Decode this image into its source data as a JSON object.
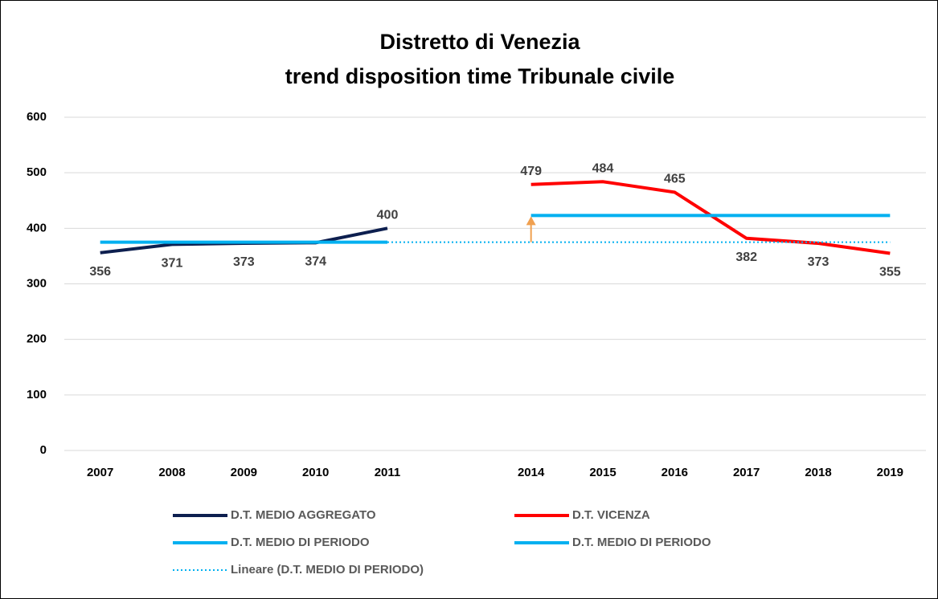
{
  "chart_data": {
    "type": "line",
    "title": [
      "Distretto di Venezia",
      "trend disposition time Tribunale civile"
    ],
    "categories": [
      "2007",
      "2008",
      "2009",
      "2010",
      "2011",
      null,
      "2014",
      "2015",
      "2016",
      "2017",
      "2018",
      "2019"
    ],
    "series": [
      {
        "name": "D.T. MEDIO AGGREGATO",
        "color": "#0d1f4f",
        "data_labels": true,
        "values": [
          356,
          371,
          373,
          374,
          400,
          null,
          null,
          null,
          null,
          null,
          null,
          null
        ]
      },
      {
        "name": "D.T. VICENZA",
        "color": "#ff0000",
        "data_labels": true,
        "values": [
          null,
          null,
          null,
          null,
          null,
          null,
          479,
          484,
          465,
          382,
          373,
          355
        ]
      },
      {
        "name": "D.T. MEDIO DI PERIODO",
        "color": "#00b0f0",
        "values": [
          375,
          375,
          375,
          375,
          375,
          null,
          null,
          null,
          null,
          null,
          null,
          null
        ]
      },
      {
        "name": "D.T. MEDIO DI PERIODO",
        "color": "#00b0f0",
        "values": [
          null,
          null,
          null,
          null,
          null,
          null,
          423,
          423,
          423,
          423,
          423,
          423
        ]
      },
      {
        "name": "Lineare (D.T. MEDIO DI PERIODO)",
        "color": "#00b0f0",
        "line_style": "dotted",
        "values": [
          null,
          null,
          null,
          null,
          375,
          375,
          375,
          375,
          375,
          375,
          375,
          375
        ]
      }
    ],
    "ylim": [
      0,
      600
    ],
    "yticks": [
      0,
      100,
      200,
      300,
      400,
      500,
      600
    ],
    "grid": true
  }
}
